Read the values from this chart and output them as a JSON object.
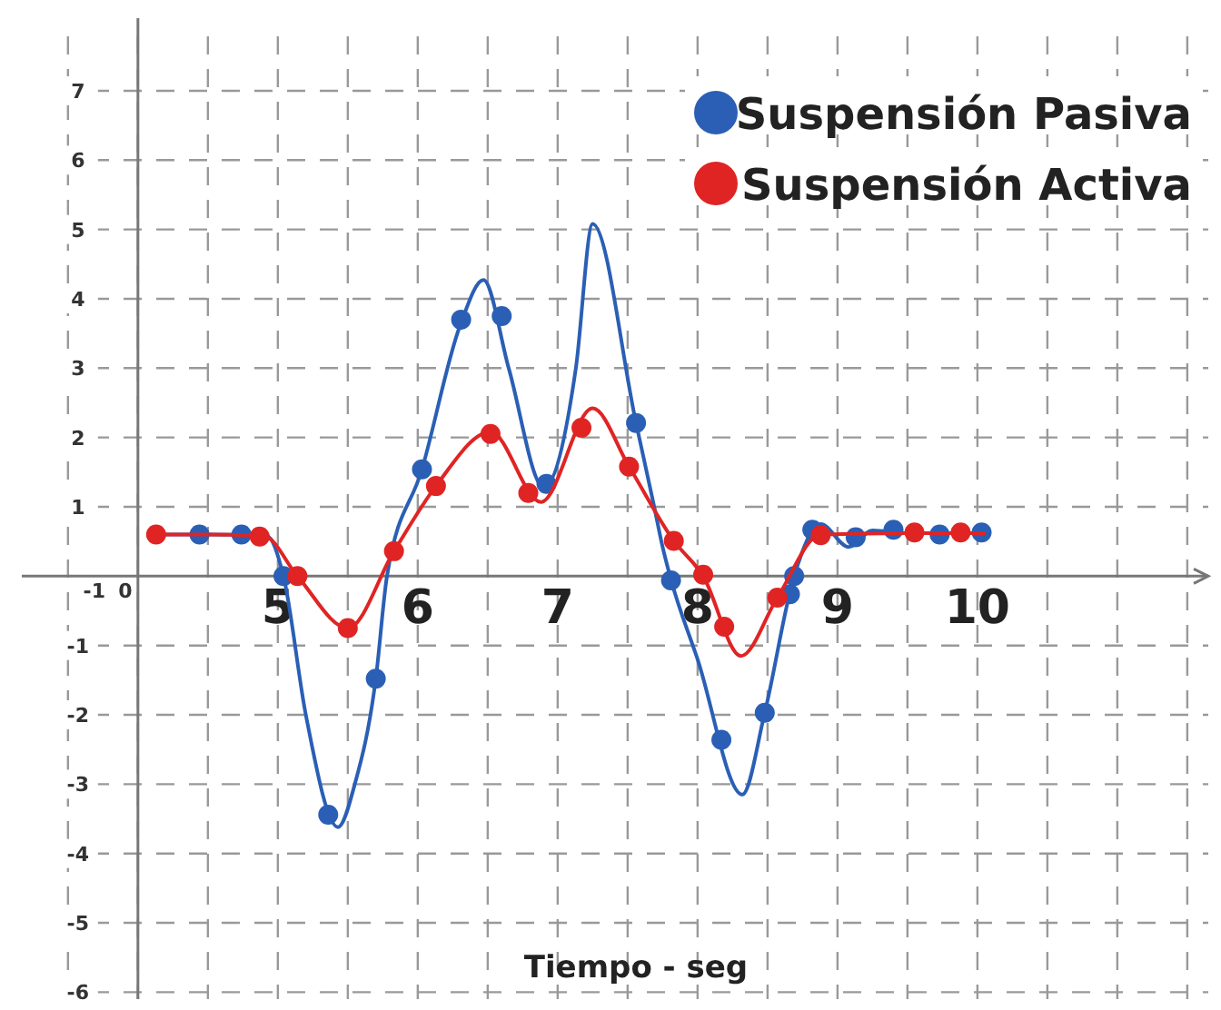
{
  "chart_data": {
    "type": "line",
    "xlabel": "Tiempo - seg",
    "xlim": [
      3.17,
      11.65
    ],
    "ylim": [
      -6.1,
      8.1
    ],
    "xticks": [
      5,
      6,
      7,
      8,
      9,
      10
    ],
    "annotations": [
      "-1",
      "0"
    ],
    "yticks": [
      -6,
      -5,
      -4,
      -3,
      -2,
      -1,
      1,
      2,
      3,
      4,
      5,
      6,
      7
    ],
    "grid": true,
    "legend": "top right",
    "series": [
      {
        "color": "#2a5fb5",
        "marker": "none",
        "line_style": "solid",
        "x": [
          4.13,
          4.5,
          4.92,
          5.04,
          5.2,
          5.43,
          5.55,
          5.7,
          5.78,
          6.03,
          6.3,
          6.47,
          6.65,
          6.9,
          7.13,
          7.25,
          7.56,
          7.69,
          7.75,
          7.81,
          8.0,
          8.32,
          8.48,
          8.69,
          8.88,
          9.08,
          9.25,
          9.5,
          10.06
        ],
        "values": [
          0.6,
          0.6,
          0.58,
          0,
          -2.0,
          -3.62,
          -3.0,
          -1.48,
          0,
          1.54,
          3.6,
          4.27,
          3.0,
          1.28,
          3.0,
          5.08,
          2.21,
          1.0,
          0.42,
          -0.05,
          -1.2,
          -3.15,
          -1.97,
          0,
          0.75,
          0.42,
          0.66,
          0.62,
          0.62
        ]
      },
      {
        "type": "scatter",
        "name": "Suspensión Pasiva",
        "color": "#2a5fb5",
        "marker": "circle",
        "x": [
          4.44,
          4.74,
          5.04,
          5.36,
          5.7,
          6.03,
          6.31,
          6.6,
          6.92,
          7.56,
          7.81,
          8.17,
          8.48,
          8.66,
          8.69,
          8.82,
          9.13,
          9.4,
          9.73,
          10.03
        ],
        "values": [
          0.6,
          0.6,
          0,
          -3.44,
          -1.48,
          1.54,
          3.7,
          3.75,
          1.33,
          2.21,
          -0.06,
          -2.36,
          -1.97,
          -0.26,
          0,
          0.67,
          0.56,
          0.67,
          0.6,
          0.63
        ]
      },
      {
        "color": "#e02424",
        "marker": "none",
        "line_style": "solid",
        "x": [
          4.13,
          4.5,
          4.9,
          5.14,
          5.5,
          5.83,
          6.13,
          6.52,
          6.88,
          7.25,
          7.51,
          7.83,
          8.04,
          8.31,
          8.57,
          8.88,
          9.5,
          10.06
        ],
        "values": [
          0.6,
          0.6,
          0.58,
          0,
          -0.75,
          0.36,
          1.3,
          2.08,
          1.07,
          2.42,
          1.58,
          0.51,
          0,
          -1.15,
          -0.31,
          0.6,
          0.62,
          0.62
        ]
      },
      {
        "type": "scatter",
        "name": "Suspensión Activa",
        "color": "#e02424",
        "marker": "circle",
        "x": [
          4.13,
          4.87,
          5.14,
          5.5,
          5.83,
          6.13,
          6.52,
          6.79,
          7.17,
          7.51,
          7.83,
          8.04,
          8.19,
          8.57,
          8.88,
          9.55,
          9.88
        ],
        "values": [
          0.6,
          0.57,
          0,
          -0.75,
          0.36,
          1.3,
          2.05,
          1.2,
          2.14,
          1.58,
          0.51,
          0.02,
          -0.73,
          -0.31,
          0.59,
          0.63,
          0.63
        ]
      }
    ]
  }
}
